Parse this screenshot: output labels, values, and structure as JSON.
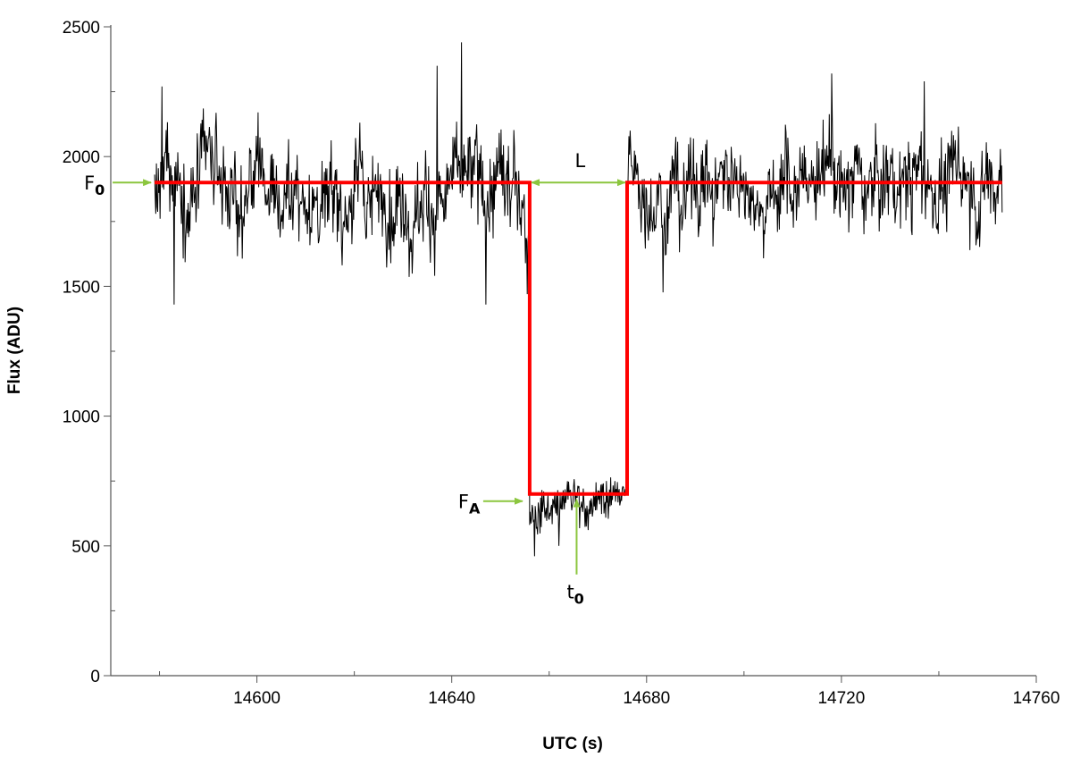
{
  "chart_data": {
    "type": "line",
    "title": "",
    "xlabel": "UTC (s)",
    "ylabel": "Flux (ADU)",
    "xlim": [
      14570,
      14760
    ],
    "ylim": [
      0,
      2500
    ],
    "x_ticks": [
      14600,
      14640,
      14680,
      14720,
      14760
    ],
    "y_ticks": [
      0,
      500,
      1000,
      1500,
      2000,
      2500
    ],
    "x_tick_labels": [
      "14600",
      "14640",
      "14680",
      "14720",
      "14760"
    ],
    "y_tick_labels": [
      "0",
      "500",
      "1000",
      "1500",
      "2000",
      "2500"
    ],
    "grid": false,
    "legend": "none",
    "series": [
      {
        "style": "noisy-light-curve",
        "color": "#000000",
        "x_range": [
          14579,
          14753
        ],
        "segments": [
          {
            "x_range": [
              14579,
              14656
            ],
            "mean": 1850,
            "spread": 130
          },
          {
            "x_range": [
              14656,
              14676
            ],
            "mean": 680,
            "spread": 60
          },
          {
            "x_range": [
              14676,
              14753
            ],
            "mean": 1900,
            "spread": 130
          }
        ],
        "approx_peaks": [
          {
            "x": 14580.5,
            "y": 2270
          },
          {
            "x": 14637,
            "y": 2350
          },
          {
            "x": 14642,
            "y": 2440
          },
          {
            "x": 14718,
            "y": 2320
          },
          {
            "x": 14737,
            "y": 2290
          }
        ],
        "approx_dips": [
          {
            "x": 14583,
            "y": 1430
          },
          {
            "x": 14647,
            "y": 1430
          },
          {
            "x": 14655.5,
            "y": 1470
          },
          {
            "x": 14657,
            "y": 460
          },
          {
            "x": 14662,
            "y": 500
          }
        ]
      },
      {
        "style": "square-well-fit",
        "color": "#ff0000",
        "x": [
          14579,
          14656,
          14656,
          14676,
          14676,
          14753
        ],
        "y": [
          1900,
          1900,
          700,
          700,
          1900,
          1900
        ]
      }
    ],
    "annotations": {
      "F0": {
        "main": "F",
        "sub": "0",
        "arrow_to": {
          "x": 14579,
          "y": 1900
        },
        "color": "#8cc63f"
      },
      "L": {
        "main": "L",
        "sub": "",
        "arrow_between": [
          {
            "x": 14656,
            "y": 1900
          },
          {
            "x": 14676,
            "y": 1900
          }
        ],
        "color": "#8cc63f"
      },
      "FA": {
        "main": "F",
        "sub": "A",
        "arrow_to": {
          "x": 14656,
          "y": 700
        },
        "color": "#8cc63f"
      },
      "t0": {
        "main": "t",
        "sub": "0",
        "arrow_to": {
          "x": 14666,
          "y": 700
        },
        "color": "#8cc63f"
      }
    }
  }
}
